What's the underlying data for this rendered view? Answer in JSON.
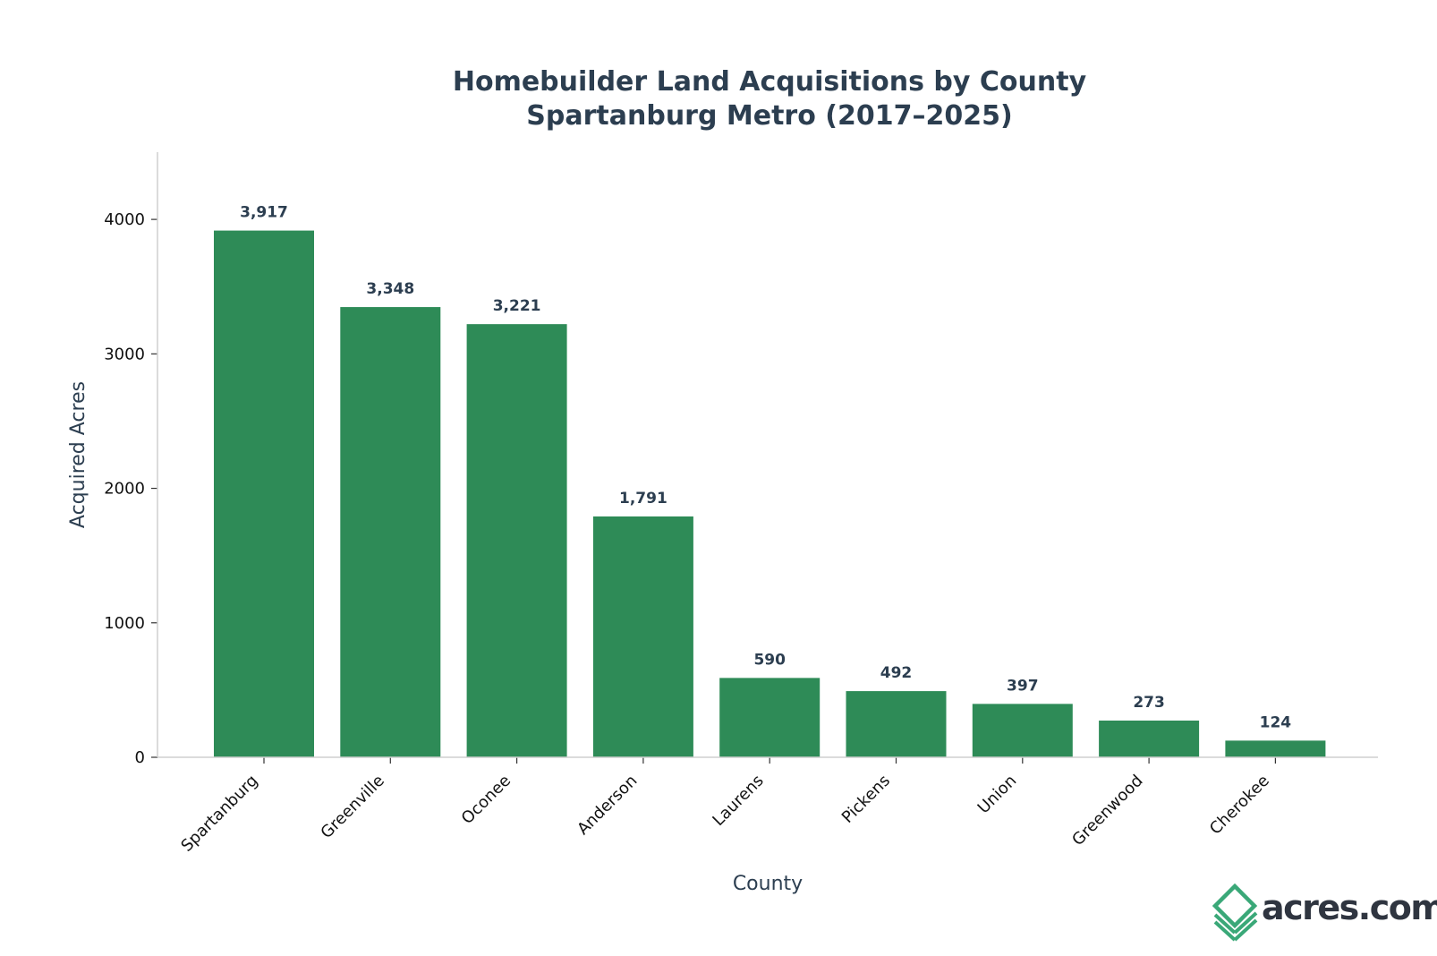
{
  "chart_data": {
    "type": "bar",
    "title": [
      "Homebuilder Land Acquisitions by County",
      "Spartanburg Metro (2017–2025)"
    ],
    "xlabel": "County",
    "ylabel": "Acquired Acres",
    "categories": [
      "Spartanburg",
      "Greenville",
      "Oconee",
      "Anderson",
      "Laurens",
      "Pickens",
      "Union",
      "Greenwood",
      "Cherokee"
    ],
    "values": [
      3917,
      3348,
      3221,
      1791,
      590,
      492,
      397,
      273,
      124
    ],
    "data_labels": [
      "3,917",
      "3,348",
      "3,221",
      "1,791",
      "590",
      "492",
      "397",
      "273",
      "124"
    ],
    "ylim": [
      0,
      4500
    ],
    "yticks": [
      0,
      1000,
      2000,
      3000,
      4000
    ],
    "ytick_labels": [
      "0",
      "1000",
      "2000",
      "3000",
      "4000"
    ],
    "bar_color": "#2e8b57",
    "grid": false,
    "legend": "none"
  },
  "brand": {
    "logo_text": "acres.com",
    "logo_color": "#3aa878",
    "text_color": "#2f3540"
  }
}
